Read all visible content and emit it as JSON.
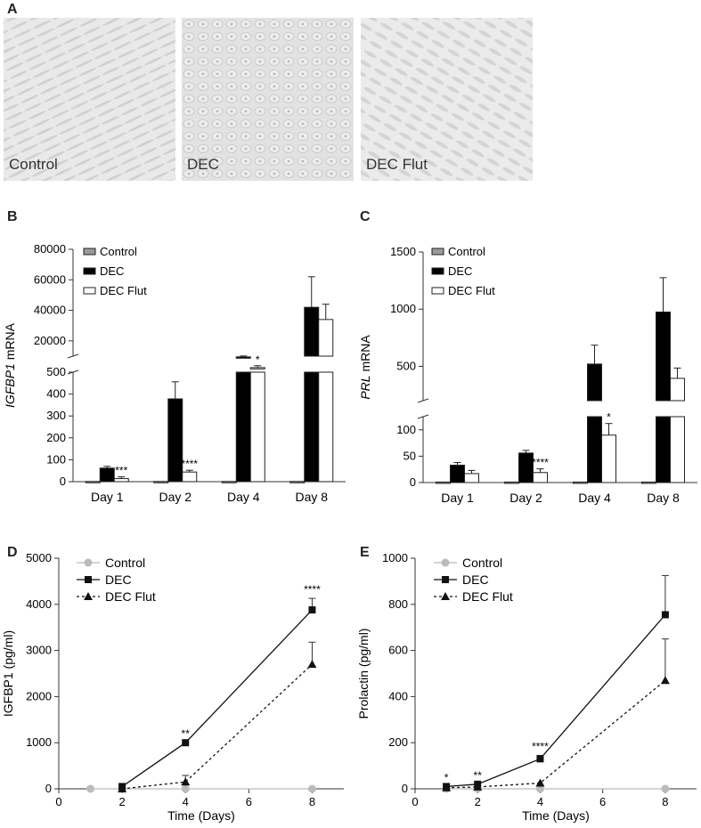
{
  "panel_labels": {
    "A": "A",
    "B": "B",
    "C": "C",
    "D": "D",
    "E": "E"
  },
  "micrographs": [
    {
      "label": "Control"
    },
    {
      "label": "DEC"
    },
    {
      "label": "DEC Flut"
    }
  ],
  "colors": {
    "control": "#9a9a9a",
    "dec": "#000000",
    "dec_flut": "#ffffff",
    "control_line": "#bbbbbb"
  },
  "chart_data": [
    {
      "id": "B",
      "type": "bar",
      "ylabel_italic": "IGFBP1",
      "ylabel_rest": " mRNA",
      "categories": [
        "Day 1",
        "Day 2",
        "Day 4",
        "Day 8"
      ],
      "legend": [
        "Control",
        "DEC",
        "DEC Flut"
      ],
      "broken_axis": true,
      "lower_ticks": [
        "0",
        "100",
        "200",
        "300",
        "400",
        "500"
      ],
      "upper_ticks": [
        "20000",
        "40000",
        "60000",
        "80000"
      ],
      "series": [
        {
          "name": "Control",
          "values": [
            1,
            1,
            1,
            1
          ],
          "errors": [
            0,
            0,
            0,
            0
          ]
        },
        {
          "name": "DEC",
          "values": [
            62,
            378,
            9500,
            42000
          ],
          "errors": [
            8,
            78,
            600,
            20000
          ]
        },
        {
          "name": "DEC Flut",
          "values": [
            14,
            44,
            2500,
            34000
          ],
          "errors": [
            8,
            8,
            1200,
            10000
          ]
        }
      ],
      "annotations": [
        {
          "category": "Day 1",
          "text": "***"
        },
        {
          "category": "Day 2",
          "text": "****"
        },
        {
          "category": "Day 4",
          "text": "*"
        }
      ]
    },
    {
      "id": "C",
      "type": "bar",
      "ylabel_italic": "PRL",
      "ylabel_rest": " mRNA",
      "categories": [
        "Day 1",
        "Day 2",
        "Day 4",
        "Day 8"
      ],
      "legend": [
        "Control",
        "DEC",
        "DEC Flut"
      ],
      "broken_axis": true,
      "lower_ticks": [
        "0",
        "50",
        "100"
      ],
      "upper_ticks": [
        "500",
        "1000",
        "1500"
      ],
      "series": [
        {
          "name": "Control",
          "values": [
            1,
            1,
            1,
            1
          ],
          "errors": [
            0,
            0,
            0,
            0
          ]
        },
        {
          "name": "DEC",
          "values": [
            33,
            56,
            520,
            975
          ],
          "errors": [
            5,
            5,
            165,
            300
          ]
        },
        {
          "name": "DEC Flut",
          "values": [
            17,
            19,
            90,
            395
          ],
          "errors": [
            6,
            7,
            22,
            90
          ]
        }
      ],
      "annotations": [
        {
          "category": "Day 2",
          "text": "****"
        },
        {
          "category": "Day 4",
          "text": "*"
        }
      ]
    },
    {
      "id": "D",
      "type": "line",
      "ylabel": "IGFBP1 (pg/ml)",
      "xlabel": "Time (Days)",
      "xlim": [
        0,
        9
      ],
      "ylim": [
        0,
        5000
      ],
      "xticks": [
        0,
        2,
        4,
        6,
        8
      ],
      "yticks": [
        0,
        1000,
        2000,
        3000,
        4000,
        5000
      ],
      "legend": [
        "Control",
        "DEC",
        "DEC Flut"
      ],
      "series": [
        {
          "name": "Control",
          "x": [
            1,
            2,
            4,
            8
          ],
          "y": [
            0,
            0,
            0,
            0
          ],
          "err": [
            0,
            0,
            0,
            0
          ]
        },
        {
          "name": "DEC",
          "x": [
            2,
            4,
            8
          ],
          "y": [
            50,
            1000,
            3880
          ],
          "err": [
            0,
            0,
            250
          ]
        },
        {
          "name": "DEC Flut",
          "x": [
            2,
            4,
            8
          ],
          "y": [
            0,
            150,
            2700
          ],
          "err": [
            0,
            140,
            480
          ]
        }
      ],
      "annotations": [
        {
          "x": 4,
          "y": 1000,
          "text": "**"
        },
        {
          "x": 8,
          "y": 3880,
          "text": "****"
        }
      ]
    },
    {
      "id": "E",
      "type": "line",
      "ylabel": "Prolactin (pg/ml)",
      "xlabel": "Time (Days)",
      "xlim": [
        0,
        9
      ],
      "ylim": [
        0,
        1000
      ],
      "xticks": [
        0,
        2,
        4,
        6,
        8
      ],
      "yticks": [
        0,
        200,
        400,
        600,
        800,
        1000
      ],
      "legend": [
        "Control",
        "DEC",
        "DEC Flut"
      ],
      "series": [
        {
          "name": "Control",
          "x": [
            1,
            2,
            4,
            8
          ],
          "y": [
            0,
            0,
            0,
            0
          ],
          "err": [
            0,
            0,
            0,
            0
          ]
        },
        {
          "name": "DEC",
          "x": [
            1,
            2,
            4,
            8
          ],
          "y": [
            10,
            20,
            130,
            755
          ],
          "err": [
            0,
            0,
            15,
            170
          ]
        },
        {
          "name": "DEC Flut",
          "x": [
            1,
            2,
            4,
            8
          ],
          "y": [
            5,
            8,
            25,
            470
          ],
          "err": [
            0,
            0,
            0,
            180
          ]
        }
      ],
      "annotations": [
        {
          "x": 1,
          "y": 10,
          "text": "*"
        },
        {
          "x": 2,
          "y": 20,
          "text": "**"
        },
        {
          "x": 4,
          "y": 130,
          "text": "****"
        }
      ]
    }
  ]
}
